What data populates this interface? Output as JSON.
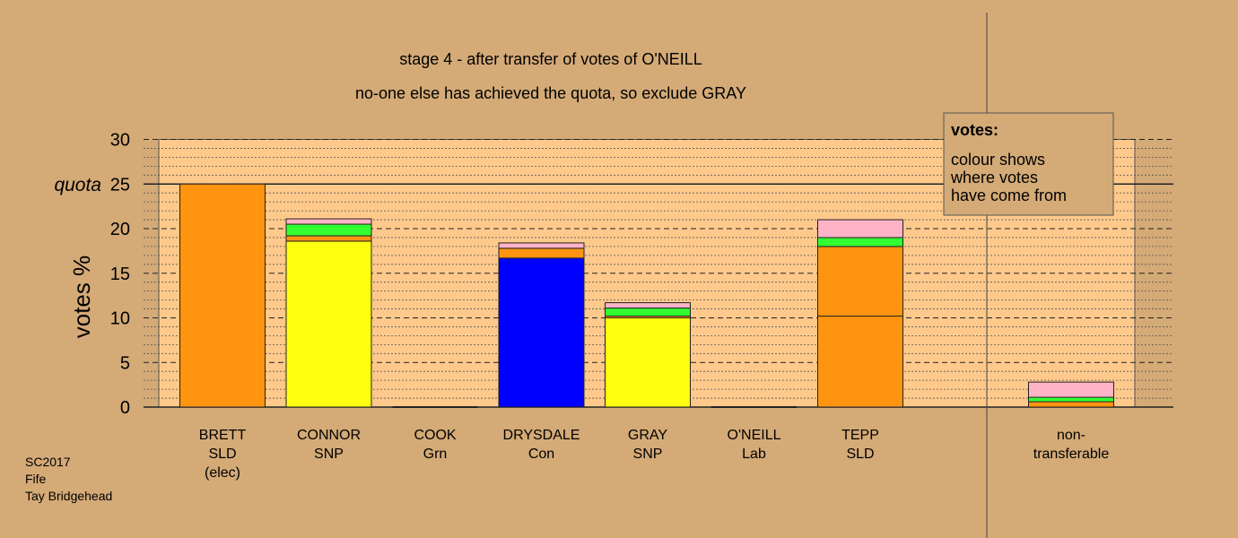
{
  "chart_data": {
    "type": "bar",
    "stacked": true,
    "title": "stage 4 - after transfer of votes of O'NEILL",
    "subtitle": "no-one else has achieved the quota, so exclude GRAY",
    "ylabel": "votes %",
    "ylim": [
      0,
      30
    ],
    "yticks": [
      0,
      5,
      10,
      15,
      20,
      25,
      30
    ],
    "ytick_labels": [
      "0",
      "5",
      "10",
      "15",
      "20",
      "25",
      "30"
    ],
    "quota": 25,
    "quota_label": "quota",
    "categories": [
      {
        "lines": [
          "BRETT",
          "SLD",
          "(elec)"
        ]
      },
      {
        "lines": [
          "CONNOR",
          "SNP"
        ]
      },
      {
        "lines": [
          "COOK",
          "Grn"
        ]
      },
      {
        "lines": [
          "DRYSDALE",
          "Con"
        ]
      },
      {
        "lines": [
          "GRAY",
          "SNP"
        ]
      },
      {
        "lines": [
          "O'NEILL",
          "Lab"
        ]
      },
      {
        "lines": [
          "TEPP",
          "SLD"
        ]
      },
      {
        "lines": [
          "non-",
          "transferable"
        ]
      }
    ],
    "bars": [
      [
        {
          "value": 25.0,
          "color": "#ff9410"
        }
      ],
      [
        {
          "value": 18.6,
          "color": "#ffff10"
        },
        {
          "value": 0.6,
          "color": "#ff9410"
        },
        {
          "value": 1.3,
          "color": "#33ff33"
        },
        {
          "value": 0.6,
          "color": "#ffb3c6"
        }
      ],
      [],
      [
        {
          "value": 16.7,
          "color": "#0000ff"
        },
        {
          "value": 1.1,
          "color": "#ff9410"
        },
        {
          "value": 0.6,
          "color": "#ffb3c6"
        }
      ],
      [
        {
          "value": 10.0,
          "color": "#ffff10"
        },
        {
          "value": 0.2,
          "color": "#ff9410"
        },
        {
          "value": 0.9,
          "color": "#33ff33"
        },
        {
          "value": 0.6,
          "color": "#ffb3c6"
        }
      ],
      [],
      [
        {
          "value": 10.2,
          "color": "#ff9410"
        },
        {
          "value": 7.8,
          "color": "#ff9410"
        },
        {
          "value": 1.0,
          "color": "#33ff33"
        },
        {
          "value": 2.0,
          "color": "#ffb3c6"
        }
      ],
      [
        {
          "value": 0.6,
          "color": "#ff9410"
        },
        {
          "value": 0.5,
          "color": "#33ff33"
        },
        {
          "value": 1.7,
          "color": "#ffb3c6"
        }
      ]
    ],
    "legend": {
      "title": "votes:",
      "lines": [
        "colour shows",
        "where votes",
        "have come from"
      ],
      "placement": "top-right"
    },
    "footer": [
      "SC2017",
      "Fife",
      "Tay Bridgehead"
    ],
    "colors": {
      "background": "#d4aa77",
      "plot_background": "#ffc98c",
      "legend_background": "#d4aa77"
    }
  }
}
